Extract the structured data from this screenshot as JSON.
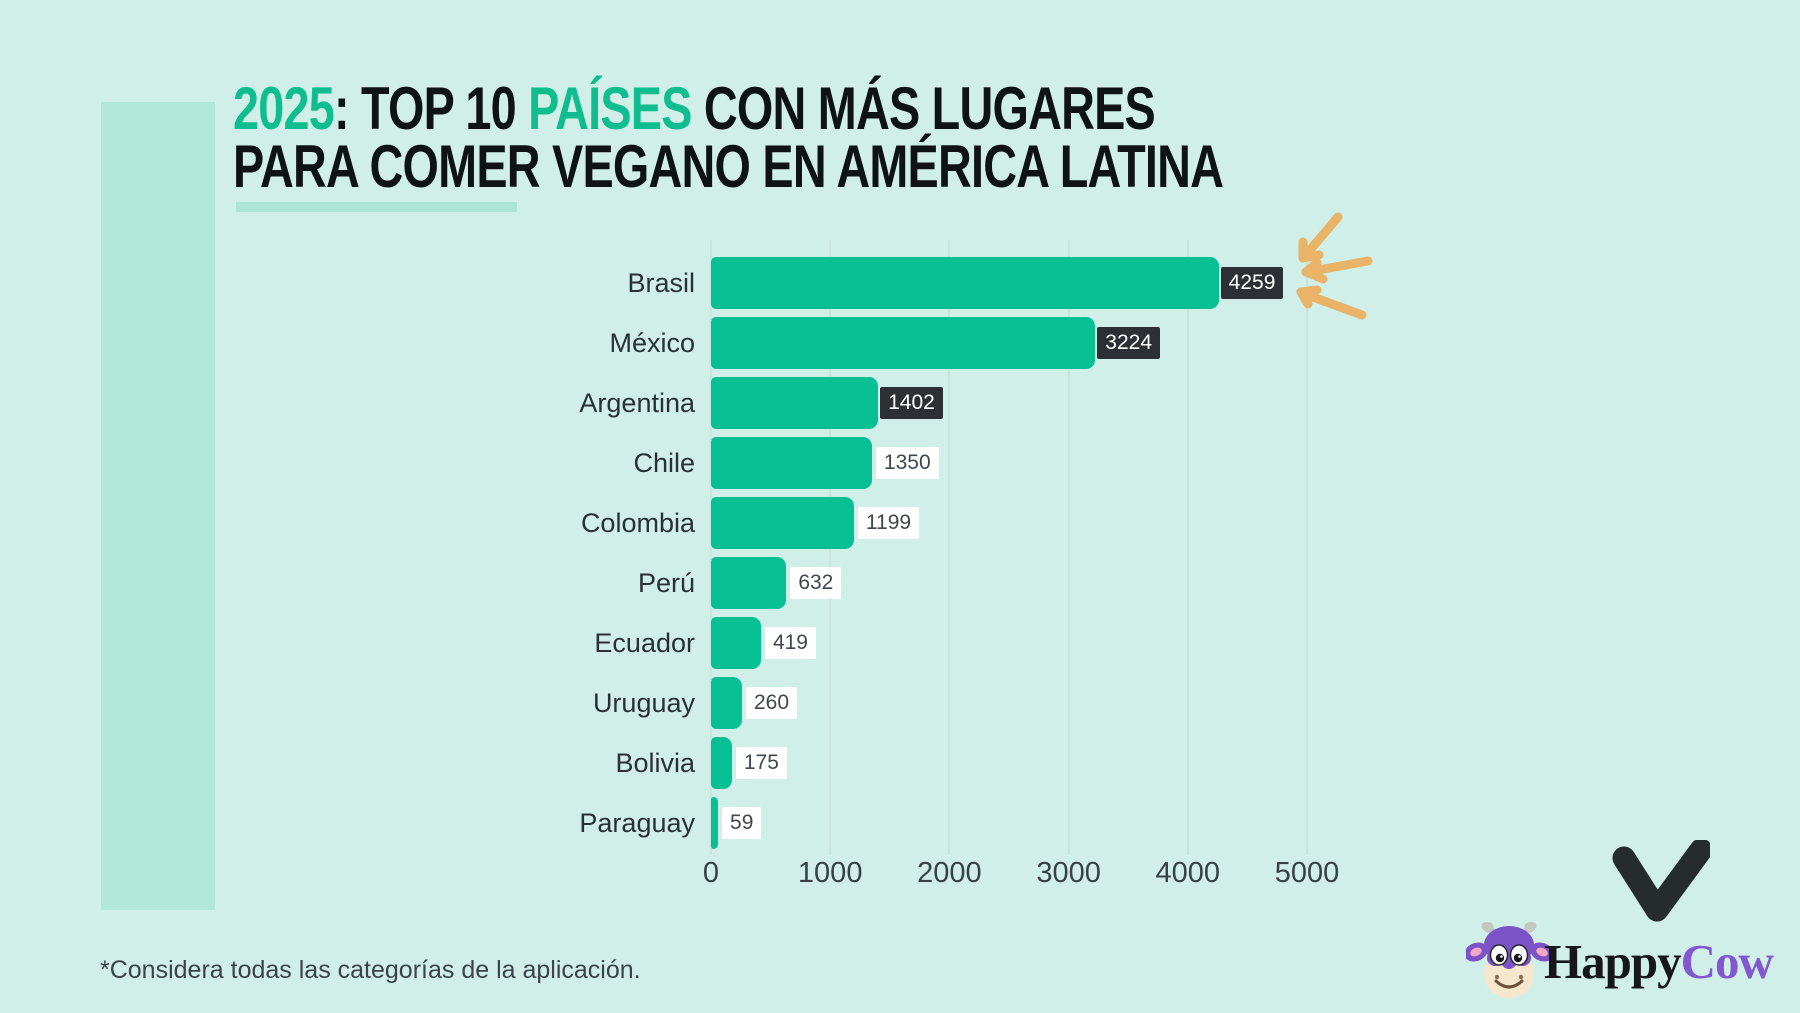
{
  "title": {
    "part_year": "2025",
    "part_mid": ": TOP 10 ",
    "part_paises": "PAÍSES",
    "part_rest": " CON MÁS LUGARES",
    "line2": "PARA COMER VEGANO EN AMÉRICA LATINA"
  },
  "footnote": "*Considera todas las categorías de la aplicación.",
  "logo": {
    "word1": "Happy",
    "word2": "Cow"
  },
  "icons": {
    "heart": "black-brush-heart-check",
    "cow": "happycow-purple-cow-mascot",
    "arrows": "three-hand-drawn-arrows-pointing-left"
  },
  "colors": {
    "background": "#d0efe8",
    "band": "#b2e8da",
    "underline": "#abe5d5",
    "bar": "#06bf93",
    "title_accent": "#10bd8e",
    "title_dark": "#101316",
    "label_text": "#2a3136",
    "axis_text": "#3a4146",
    "value_dark_bg": "#2c3034",
    "value_dark_text": "#ffffff",
    "value_light_bg": "#fefffe",
    "value_light_text": "#41474c",
    "arrow": "#e9b368",
    "grid": "#c7e0d9",
    "logo_purple": "#8257cf",
    "logo_black": "#15171a",
    "heart": "#262c2d",
    "footnote_text": "#3d4449"
  },
  "chart_data": {
    "type": "bar",
    "orientation": "horizontal",
    "title": "2025: TOP 10 PAÍSES CON MÁS LUGARES PARA COMER VEGANO EN AMÉRICA LATINA",
    "categories": [
      "Brasil",
      "México",
      "Argentina",
      "Chile",
      "Colombia",
      "Perú",
      "Ecuador",
      "Uruguay",
      "Bolivia",
      "Paraguay"
    ],
    "values": [
      4259,
      3224,
      1402,
      1350,
      1199,
      632,
      419,
      260,
      175,
      59
    ],
    "xlabel": "",
    "ylabel": "",
    "xlim": [
      0,
      5000
    ],
    "xticks": [
      0,
      1000,
      2000,
      3000,
      4000,
      5000
    ],
    "grid": true,
    "legend": false,
    "value_label_style": [
      "dark",
      "dark",
      "dark",
      "light",
      "light",
      "light",
      "light",
      "light",
      "light",
      "light"
    ],
    "annotation": "arrows point at top value 4259 (Brasil)"
  }
}
